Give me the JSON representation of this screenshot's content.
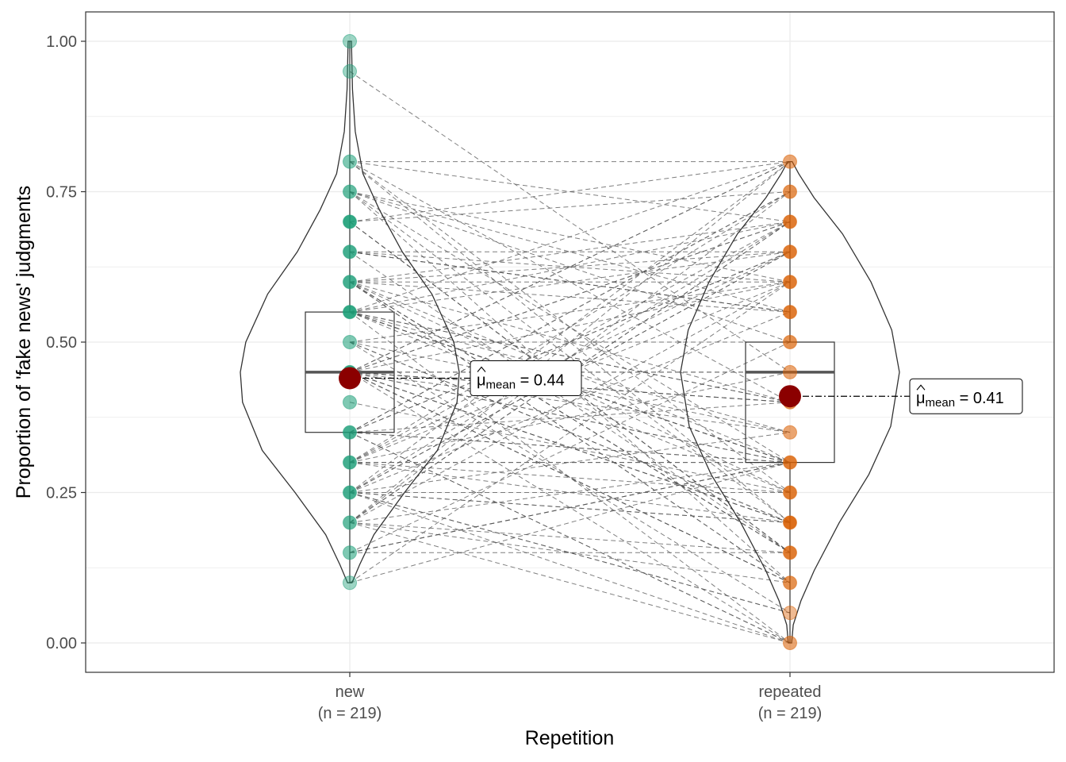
{
  "chart_data": {
    "type": "violin-box-paired",
    "xlabel": "Repetition",
    "ylabel": "Proportion of 'fake news' judgments",
    "ylim": [
      -0.05,
      1.05
    ],
    "yticks": [
      0.0,
      0.25,
      0.5,
      0.75,
      1.0
    ],
    "ytick_labels": [
      "0.00",
      "0.25",
      "0.50",
      "0.75",
      "1.00"
    ],
    "grid": true,
    "categories": [
      "new",
      "repeated"
    ],
    "category_labels": [
      {
        "name": "new",
        "n": "(n = 219)"
      },
      {
        "name": "repeated",
        "n": "(n = 219)"
      }
    ],
    "groups": [
      {
        "name": "new",
        "color": "#1b9e77",
        "box": {
          "q1": 0.35,
          "median": 0.45,
          "q3": 0.55,
          "whisker_low": 0.1,
          "whisker_high": 1.0
        },
        "mean": 0.44,
        "mean_label_prefix": "μ",
        "mean_label_sub": "mean",
        "mean_label_value": "= 0.44",
        "points": [
          0.1,
          0.15,
          0.2,
          0.25,
          0.3,
          0.35,
          0.4,
          0.45,
          0.5,
          0.55,
          0.6,
          0.65,
          0.7,
          0.75,
          0.8,
          0.95,
          1.0
        ],
        "point_density": [
          1,
          2,
          3,
          4,
          4,
          4,
          2,
          5,
          2,
          5,
          4,
          4,
          5,
          3,
          2,
          1,
          1
        ],
        "violin_density": [
          [
            0.1,
            0.02
          ],
          [
            0.13,
            0.09
          ],
          [
            0.18,
            0.22
          ],
          [
            0.25,
            0.5
          ],
          [
            0.32,
            0.8
          ],
          [
            0.4,
            0.98
          ],
          [
            0.45,
            1.0
          ],
          [
            0.5,
            0.95
          ],
          [
            0.58,
            0.75
          ],
          [
            0.65,
            0.48
          ],
          [
            0.72,
            0.27
          ],
          [
            0.78,
            0.12
          ],
          [
            0.85,
            0.05
          ],
          [
            0.92,
            0.025
          ],
          [
            1.0,
            0.015
          ]
        ]
      },
      {
        "name": "repeated",
        "color": "#d95f02",
        "box": {
          "q1": 0.3,
          "median": 0.45,
          "q3": 0.5,
          "whisker_low": 0.0,
          "whisker_high": 0.8
        },
        "mean": 0.41,
        "mean_label_prefix": "μ",
        "mean_label_sub": "mean",
        "mean_label_value": "= 0.41",
        "points": [
          0.0,
          0.05,
          0.1,
          0.15,
          0.2,
          0.25,
          0.3,
          0.35,
          0.4,
          0.45,
          0.5,
          0.55,
          0.6,
          0.65,
          0.7,
          0.75,
          0.8
        ],
        "point_density": [
          2,
          1,
          3,
          4,
          5,
          4,
          4,
          2,
          3,
          2,
          3,
          4,
          4,
          4,
          4,
          3,
          2
        ],
        "violin_density": [
          [
            0.0,
            0.015
          ],
          [
            0.03,
            0.03
          ],
          [
            0.07,
            0.1
          ],
          [
            0.12,
            0.22
          ],
          [
            0.2,
            0.45
          ],
          [
            0.28,
            0.72
          ],
          [
            0.36,
            0.92
          ],
          [
            0.45,
            1.0
          ],
          [
            0.52,
            0.93
          ],
          [
            0.6,
            0.74
          ],
          [
            0.68,
            0.48
          ],
          [
            0.74,
            0.22
          ],
          [
            0.78,
            0.08
          ],
          [
            0.8,
            0.02
          ]
        ]
      }
    ],
    "mean_color": "#8b0000"
  },
  "colors": {
    "panel_border": "#333333",
    "grid": "#ebebeb",
    "tick": "#333333"
  }
}
